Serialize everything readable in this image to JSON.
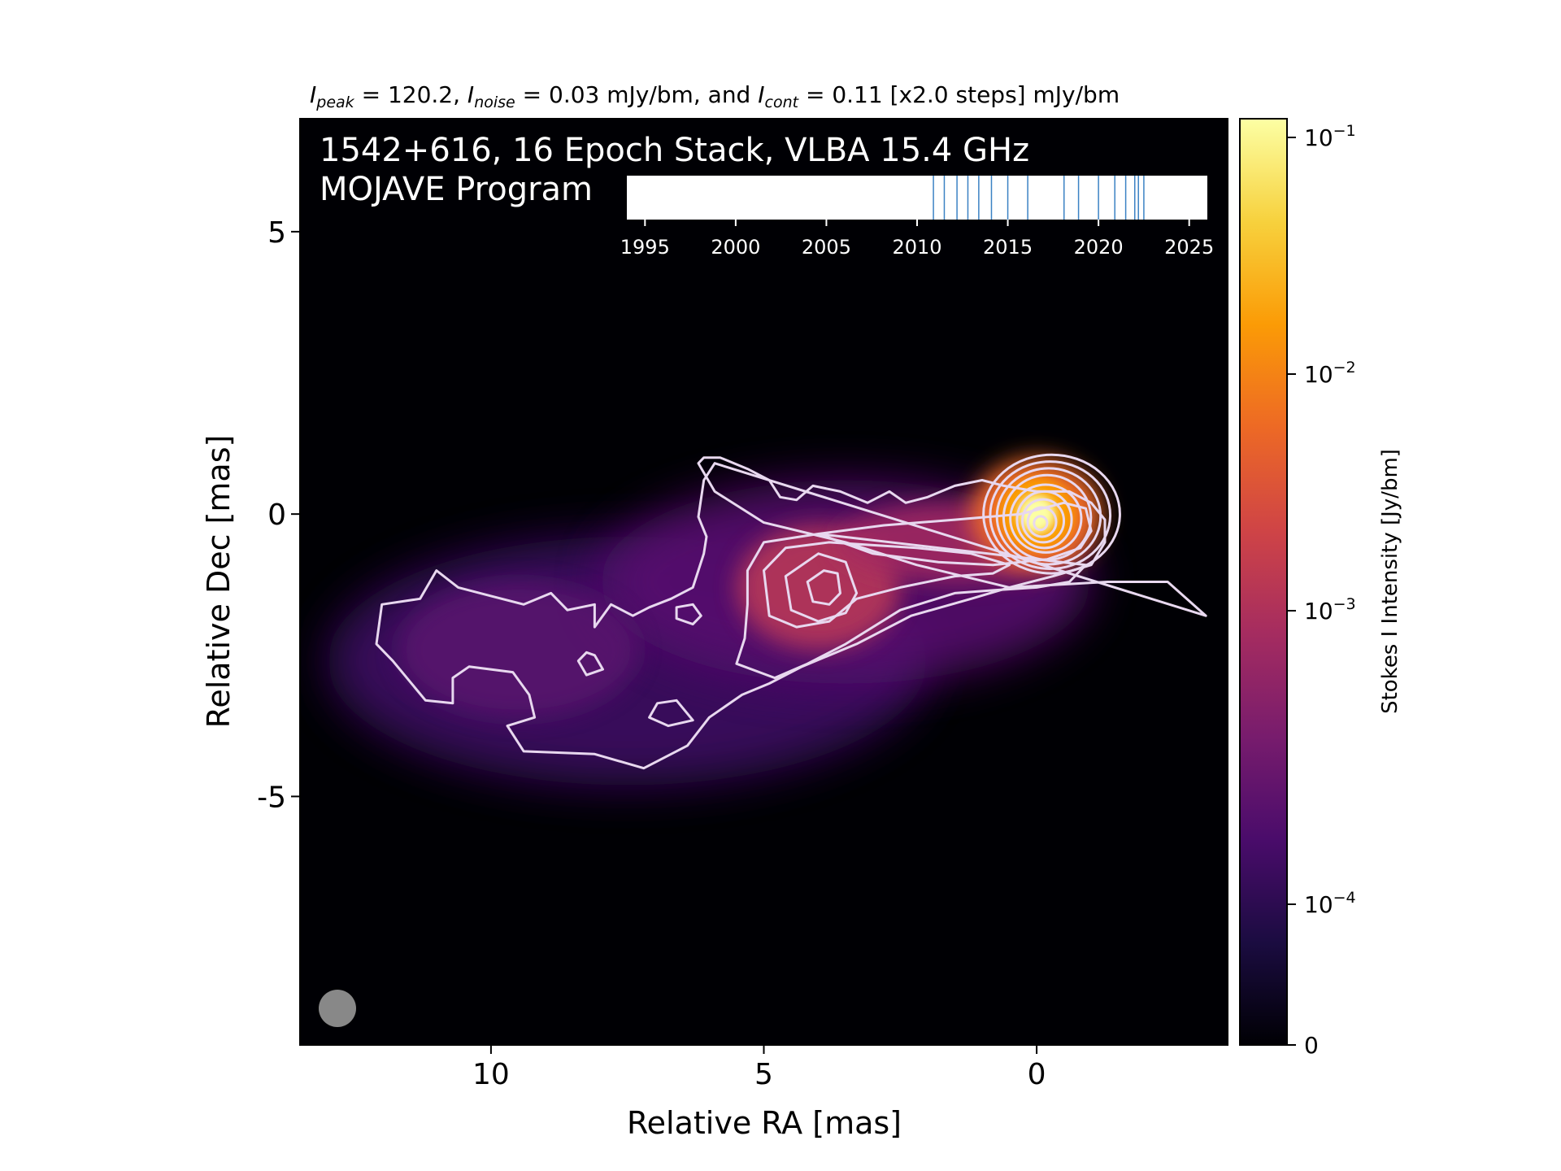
{
  "chart_data": {
    "type": "heatmap",
    "header": {
      "i_peak_value": "120.2",
      "i_noise_value": "0.03",
      "i_cont_value": "0.11",
      "steps_text": "[x2.0 steps]",
      "unit": "mJy/bm",
      "and_word": "and"
    },
    "title_line1": "1542+616, 16 Epoch Stack, VLBA 15.4 GHz",
    "title_line2": "MOJAVE Program",
    "xlabel": "Relative RA [mas]",
    "ylabel": "Relative Dec [mas]",
    "x_ticks": [
      "10",
      "5",
      "0"
    ],
    "y_ticks": [
      "5",
      "0",
      "-5"
    ],
    "xlim": [
      13.5,
      -3.5
    ],
    "ylim": [
      -9.4,
      7.0
    ],
    "colorbar": {
      "label": "Stokes I Intensity [Jy/bm]",
      "ticks": [
        {
          "base": "10",
          "exp": "−1"
        },
        {
          "base": "10",
          "exp": "−2"
        },
        {
          "base": "10",
          "exp": "−3"
        },
        {
          "base": "10",
          "exp": "−4"
        },
        {
          "base": "0",
          "exp": ""
        }
      ],
      "colors": [
        "#000004",
        "#1b0c41",
        "#4a0c6b",
        "#781c6d",
        "#a52c60",
        "#cf4446",
        "#ed6925",
        "#fb9b06",
        "#f7d13d",
        "#fcffa4"
      ]
    },
    "timeline": {
      "ticks": [
        "1995",
        "2000",
        "2005",
        "2010",
        "2015",
        "2020",
        "2025"
      ],
      "range": [
        1994.0,
        2026.0
      ],
      "epochs": [
        2010.9,
        2011.5,
        2012.2,
        2012.8,
        2013.4,
        2014.1,
        2015.0,
        2016.1,
        2018.1,
        2018.9,
        2020.0,
        2020.9,
        2021.5,
        2022.0,
        2022.2,
        2022.5
      ]
    },
    "beam_color": "#888888",
    "contours": [
      [
        [
          -3.1,
          -1.8
        ],
        [
          -2.4,
          -1.2
        ],
        [
          -1.9,
          -1.2
        ],
        [
          -1.3,
          -1.2
        ],
        [
          0.5,
          -1.3
        ],
        [
          2.2,
          -0.9
        ],
        [
          3.5,
          -0.5
        ],
        [
          5.0,
          -0.15
        ],
        [
          5.9,
          0.4
        ],
        [
          6.2,
          0.9
        ],
        [
          6.1,
          1.0
        ],
        [
          5.8,
          1.0
        ],
        [
          5.3,
          0.8
        ],
        [
          4.9,
          0.6
        ],
        [
          4.7,
          0.3
        ],
        [
          4.4,
          0.25
        ],
        [
          4.1,
          0.5
        ],
        [
          3.6,
          0.4
        ],
        [
          3.1,
          0.2
        ],
        [
          2.7,
          0.4
        ],
        [
          2.4,
          0.2
        ],
        [
          2.0,
          0.3
        ],
        [
          1.5,
          0.5
        ],
        [
          1.0,
          0.6
        ],
        [
          0.6,
          0.5
        ],
        [
          0.0,
          0.4
        ],
        [
          -0.6,
          0.4
        ],
        [
          -1.0,
          0.2
        ],
        [
          -1.25,
          -0.1
        ],
        [
          -1.25,
          -0.5
        ],
        [
          -1.0,
          -0.9
        ],
        [
          -0.3,
          -1.1
        ],
        [
          0.5,
          -1.3
        ],
        [
          1.2,
          -1.5
        ],
        [
          2.3,
          -1.8
        ],
        [
          3.3,
          -2.3
        ],
        [
          4.3,
          -2.7
        ],
        [
          4.9,
          -3.0
        ],
        [
          5.4,
          -3.2
        ],
        [
          6.0,
          -3.6
        ],
        [
          6.4,
          -4.1
        ],
        [
          7.2,
          -4.5
        ],
        [
          8.1,
          -4.25
        ],
        [
          9.4,
          -4.2
        ],
        [
          9.7,
          -3.75
        ],
        [
          9.2,
          -3.6
        ],
        [
          9.3,
          -3.2
        ],
        [
          9.6,
          -2.8
        ],
        [
          10.4,
          -2.7
        ],
        [
          10.7,
          -2.9
        ],
        [
          10.7,
          -3.35
        ],
        [
          11.2,
          -3.3
        ],
        [
          11.8,
          -2.6
        ],
        [
          12.1,
          -2.3
        ],
        [
          12.0,
          -1.6
        ],
        [
          11.3,
          -1.5
        ],
        [
          11.0,
          -1.0
        ],
        [
          10.6,
          -1.3
        ],
        [
          10.0,
          -1.45
        ],
        [
          9.4,
          -1.6
        ],
        [
          8.9,
          -1.4
        ],
        [
          8.6,
          -1.7
        ],
        [
          8.1,
          -1.6
        ],
        [
          8.1,
          -2.0
        ],
        [
          7.8,
          -1.6
        ],
        [
          7.4,
          -1.8
        ],
        [
          7.1,
          -1.65
        ],
        [
          6.7,
          -1.5
        ],
        [
          6.3,
          -1.3
        ],
        [
          6.1,
          -0.7
        ],
        [
          6.05,
          -0.4
        ],
        [
          6.2,
          -0.05
        ],
        [
          6.1,
          0.6
        ],
        [
          5.9,
          0.9
        ]
      ],
      [
        [
          4.0,
          -0.35
        ],
        [
          3.0,
          -0.7
        ],
        [
          1.8,
          -0.85
        ],
        [
          0.8,
          -0.9
        ],
        [
          -0.2,
          -0.8
        ],
        [
          -0.8,
          -0.6
        ],
        [
          -1.0,
          -0.3
        ],
        [
          -0.9,
          0.1
        ],
        [
          -0.5,
          0.2
        ],
        [
          0.3,
          0.0
        ],
        [
          1.5,
          -0.1
        ],
        [
          2.8,
          -0.2
        ],
        [
          4.0,
          -0.35
        ],
        [
          5.0,
          -0.5
        ],
        [
          5.3,
          -1.0
        ],
        [
          5.3,
          -1.6
        ],
        [
          5.35,
          -2.2
        ],
        [
          5.5,
          -2.65
        ],
        [
          4.8,
          -2.9
        ],
        [
          4.2,
          -2.65
        ],
        [
          3.5,
          -2.3
        ],
        [
          2.5,
          -1.7
        ],
        [
          1.5,
          -1.4
        ],
        [
          0.8,
          -1.35
        ],
        [
          0.0,
          -1.3
        ],
        [
          -0.6,
          -1.2
        ],
        [
          -0.9,
          -0.9
        ]
      ],
      [
        [
          5.0,
          -1.0
        ],
        [
          4.9,
          -1.8
        ],
        [
          4.4,
          -2.0
        ],
        [
          3.8,
          -1.9
        ],
        [
          3.3,
          -1.5
        ],
        [
          2.5,
          -1.3
        ],
        [
          1.5,
          -1.1
        ],
        [
          0.8,
          -1.05
        ],
        [
          0.5,
          -0.9
        ],
        [
          1.2,
          -0.7
        ],
        [
          2.2,
          -0.6
        ],
        [
          3.0,
          -0.55
        ],
        [
          3.8,
          -0.5
        ],
        [
          4.6,
          -0.6
        ],
        [
          5.0,
          -1.0
        ]
      ],
      [
        [
          4.6,
          -1.1
        ],
        [
          4.5,
          -1.7
        ],
        [
          4.0,
          -1.9
        ],
        [
          3.5,
          -1.75
        ],
        [
          3.3,
          -1.4
        ],
        [
          3.5,
          -0.85
        ],
        [
          4.0,
          -0.7
        ],
        [
          4.6,
          -1.1
        ]
      ],
      [
        [
          4.2,
          -1.2
        ],
        [
          4.1,
          -1.55
        ],
        [
          3.8,
          -1.6
        ],
        [
          3.6,
          -1.4
        ],
        [
          3.65,
          -1.05
        ],
        [
          3.9,
          -1.0
        ],
        [
          4.2,
          -1.2
        ]
      ],
      [
        [
          6.6,
          -3.3
        ],
        [
          6.3,
          -3.65
        ],
        [
          6.75,
          -3.75
        ],
        [
          7.1,
          -3.6
        ],
        [
          6.95,
          -3.35
        ],
        [
          6.6,
          -3.3
        ]
      ],
      [
        [
          6.15,
          -1.8
        ],
        [
          6.3,
          -1.95
        ],
        [
          6.6,
          -1.85
        ],
        [
          6.6,
          -1.65
        ],
        [
          6.3,
          -1.6
        ],
        [
          6.15,
          -1.8
        ]
      ],
      [
        [
          8.1,
          -2.5
        ],
        [
          7.95,
          -2.75
        ],
        [
          8.25,
          -2.85
        ],
        [
          8.4,
          -2.6
        ],
        [
          8.25,
          -2.45
        ],
        [
          8.1,
          -2.5
        ]
      ]
    ],
    "core_rings": [
      [
        1.25,
        1.05
      ],
      [
        1.1,
        0.95
      ],
      [
        0.95,
        0.85
      ],
      [
        0.8,
        0.75
      ],
      [
        0.65,
        0.6
      ],
      [
        0.5,
        0.5
      ],
      [
        0.38,
        0.38
      ],
      [
        0.26,
        0.26
      ],
      [
        0.12,
        0.12
      ]
    ]
  }
}
